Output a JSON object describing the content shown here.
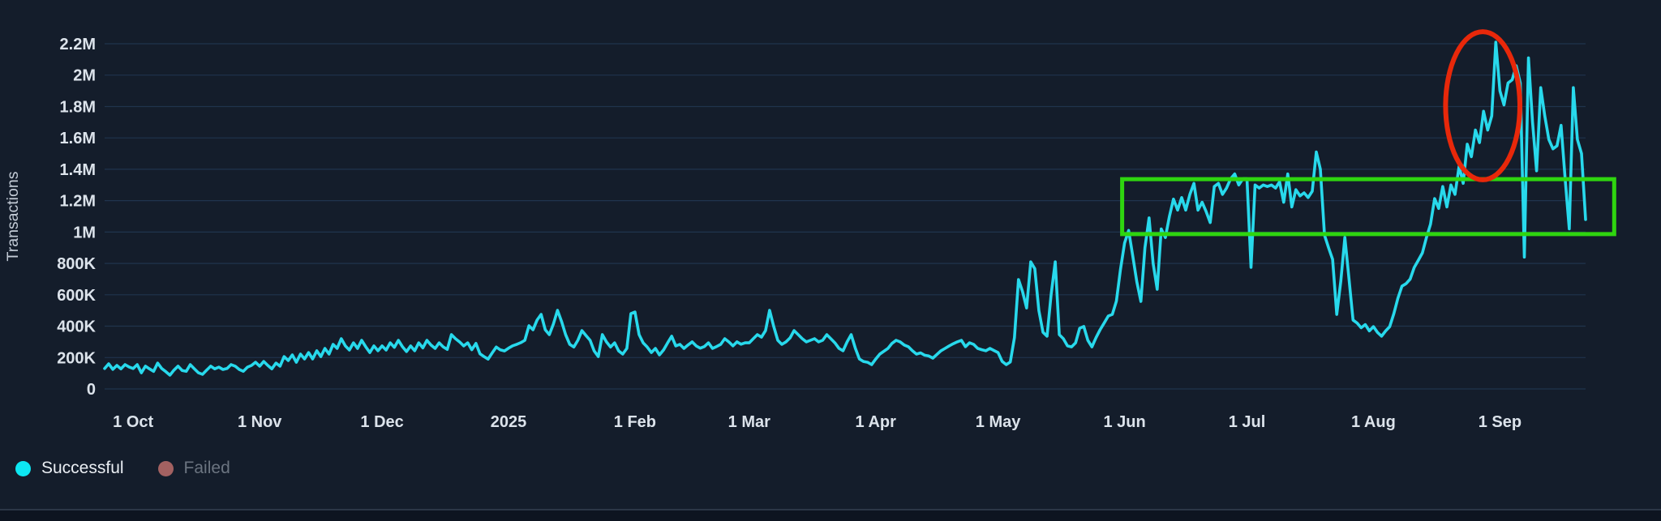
{
  "colors": {
    "background": "#141d2b",
    "grid": "#27405f",
    "tick_text": "#dce3eb",
    "axis_title_text": "#c3cbd6",
    "footer_strip": "#0d1420",
    "footer_divider": "#2c3646"
  },
  "legend": {
    "items": [
      {
        "label": "Successful",
        "dot_color": "#0de7f2",
        "text_color": "#eaeef3",
        "disabled": false
      },
      {
        "label": "Failed",
        "dot_color": "#a36161",
        "text_color": "#6b7480",
        "disabled": true
      }
    ]
  },
  "chart_data": {
    "type": "line",
    "title": "",
    "xlabel": "",
    "ylabel": "Transactions",
    "grid": "horizontal",
    "legend_position": "bottom-left",
    "ylim": [
      0,
      2200000
    ],
    "y_ticks": [
      {
        "v": 0,
        "label": "0"
      },
      {
        "v": 200000,
        "label": "200K"
      },
      {
        "v": 400000,
        "label": "400K"
      },
      {
        "v": 600000,
        "label": "600K"
      },
      {
        "v": 800000,
        "label": "800K"
      },
      {
        "v": 1000000,
        "label": "1M"
      },
      {
        "v": 1200000,
        "label": "1.2M"
      },
      {
        "v": 1400000,
        "label": "1.4M"
      },
      {
        "v": 1600000,
        "label": "1.6M"
      },
      {
        "v": 1800000,
        "label": "1.8M"
      },
      {
        "v": 2000000,
        "label": "2M"
      },
      {
        "v": 2200000,
        "label": "2.2M"
      }
    ],
    "x_unit": "day",
    "x_start_date": "2024-09-24",
    "x_range": [
      0,
      363
    ],
    "x_ticks": [
      {
        "day": 7,
        "label": "1 Oct"
      },
      {
        "day": 38,
        "label": "1 Nov"
      },
      {
        "day": 68,
        "label": "1 Dec"
      },
      {
        "day": 99,
        "label": "2025"
      },
      {
        "day": 130,
        "label": "1 Feb"
      },
      {
        "day": 158,
        "label": "1 Mar"
      },
      {
        "day": 189,
        "label": "1 Apr"
      },
      {
        "day": 219,
        "label": "1 May"
      },
      {
        "day": 250,
        "label": "1 Jun"
      },
      {
        "day": 280,
        "label": "1 Jul"
      },
      {
        "day": 311,
        "label": "1 Aug"
      },
      {
        "day": 342,
        "label": "1 Sep"
      }
    ],
    "series": [
      {
        "name": "Successful",
        "color": "#28d9ec",
        "visible": true,
        "values_unit": "thousands_of_transactions",
        "values": [
          130,
          160,
          125,
          150,
          128,
          155,
          140,
          130,
          155,
          103,
          145,
          128,
          112,
          165,
          130,
          110,
          88,
          120,
          145,
          118,
          112,
          155,
          128,
          103,
          93,
          120,
          145,
          128,
          139,
          124,
          130,
          155,
          145,
          124,
          112,
          139,
          150,
          170,
          145,
          175,
          150,
          128,
          165,
          145,
          206,
          181,
          217,
          170,
          222,
          191,
          232,
          191,
          243,
          206,
          258,
          222,
          284,
          258,
          320,
          274,
          248,
          294,
          258,
          310,
          269,
          232,
          274,
          243,
          274,
          248,
          294,
          265,
          310,
          269,
          238,
          274,
          243,
          294,
          262,
          310,
          280,
          258,
          294,
          268,
          252,
          346,
          320,
          300,
          274,
          294,
          250,
          290,
          224,
          206,
          190,
          230,
          267,
          249,
          242,
          260,
          275,
          284,
          295,
          310,
          403,
          377,
          439,
          475,
          377,
          346,
          413,
          501,
          430,
          346,
          284,
          267,
          310,
          372,
          340,
          310,
          242,
          206,
          346,
          300,
          267,
          294,
          242,
          222,
          258,
          480,
          490,
          346,
          294,
          267,
          232,
          258,
          217,
          249,
          294,
          336,
          274,
          284,
          258,
          280,
          300,
          274,
          260,
          270,
          294,
          258,
          270,
          284,
          320,
          300,
          274,
          300,
          285,
          294,
          294,
          320,
          346,
          330,
          372,
          501,
          398,
          310,
          284,
          300,
          325,
          372,
          346,
          320,
          300,
          310,
          320,
          300,
          310,
          346,
          320,
          294,
          258,
          243,
          300,
          346,
          260,
          191,
          175,
          170,
          155,
          190,
          222,
          240,
          258,
          290,
          310,
          300,
          280,
          269,
          243,
          222,
          230,
          215,
          210,
          196,
          220,
          243,
          258,
          274,
          288,
          300,
          310,
          269,
          294,
          284,
          258,
          250,
          243,
          258,
          245,
          232,
          175,
          155,
          172,
          327,
          697,
          620,
          516,
          810,
          766,
          500,
          361,
          336,
          600,
          810,
          346,
          320,
          274,
          268,
          294,
          387,
          398,
          310,
          268,
          327,
          377,
          420,
          465,
          475,
          560,
          760,
          930,
          1010,
          850,
          682,
          558,
          900,
          1090,
          800,
          635,
          1020,
          965,
          1100,
          1210,
          1140,
          1220,
          1140,
          1240,
          1310,
          1140,
          1190,
          1130,
          1060,
          1290,
          1310,
          1240,
          1280,
          1340,
          1370,
          1300,
          1340,
          1340,
          775,
          1300,
          1280,
          1300,
          1290,
          1300,
          1280,
          1320,
          1190,
          1370,
          1160,
          1270,
          1230,
          1250,
          1220,
          1260,
          1510,
          1400,
          980,
          900,
          826,
          475,
          687,
          965,
          707,
          439,
          420,
          390,
          410,
          370,
          397,
          360,
          336,
          370,
          397,
          480,
          578,
          655,
          671,
          700,
          774,
          820,
          867,
          965,
          1050,
          1213,
          1150,
          1290,
          1160,
          1300,
          1240,
          1420,
          1310,
          1560,
          1480,
          1650,
          1570,
          1770,
          1650,
          1740,
          2210,
          1900,
          1810,
          1950,
          1970,
          2060,
          1950,
          840,
          2110,
          1700,
          1390,
          1920,
          1740,
          1590,
          1530,
          1550,
          1680,
          1340,
          1020,
          1920,
          1590,
          1500,
          1080
        ]
      },
      {
        "name": "Failed",
        "color": "#a36161",
        "visible": false,
        "values": []
      }
    ],
    "annotations": [
      {
        "type": "rect",
        "color": "#2fd50f",
        "stroke_width": 5,
        "day_start": 249.4,
        "day_end": 370,
        "value_low": 987000,
        "value_high": 1337000
      },
      {
        "type": "ellipse",
        "color": "#e8280a",
        "stroke_width": 6,
        "day_center": 337.8,
        "day_radius": 9.1,
        "value_center": 1805000,
        "value_radius": 472000
      }
    ]
  }
}
